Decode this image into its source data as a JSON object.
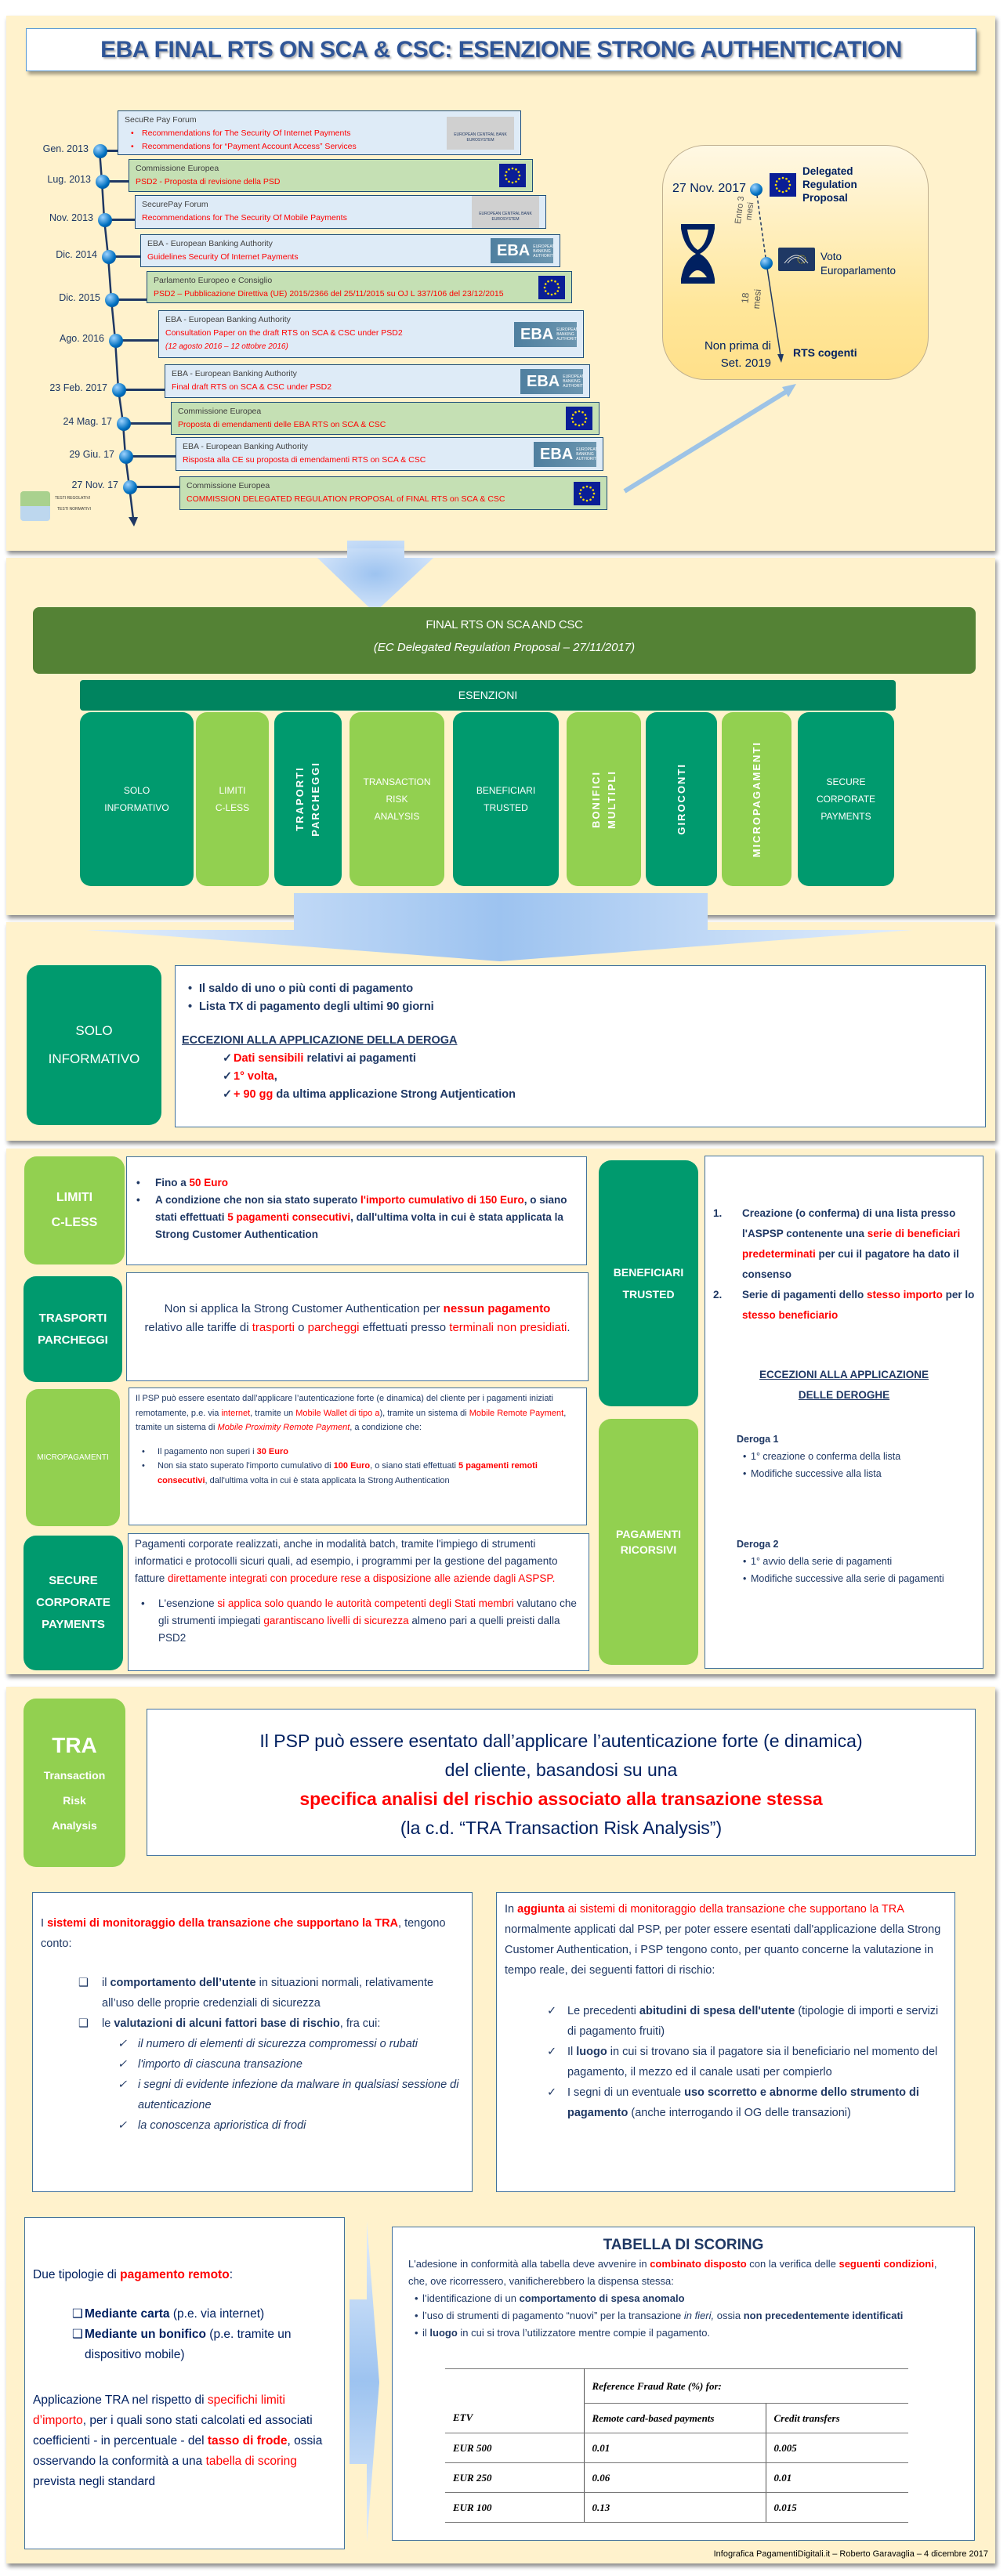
{
  "title": "EBA FINAL RTS ON SCA & CSC: ESENZIONE STRONG AUTHENTICATION",
  "timeline": {
    "items": [
      {
        "date": "Gen. 2013",
        "source": "SecuRe Pay Forum",
        "lines": [
          "Recommendations for The Security Of Internet Payments",
          "Recommendations for “Payment Account Access” Services"
        ],
        "bulleted": true,
        "kind": "blue",
        "logo": "ecb"
      },
      {
        "date": "Lug. 2013",
        "source": "Commissione Europea",
        "lines": [
          "PSD2 - Proposta di revisione della PSD"
        ],
        "kind": "green",
        "logo": "eu"
      },
      {
        "date": "Nov. 2013",
        "source": "SecurePay Forum",
        "lines": [
          "Recommendations for The Security Of Mobile Payments"
        ],
        "kind": "blue",
        "logo": "ecb"
      },
      {
        "date": "Dic. 2014",
        "source": "EBA - European Banking Authority",
        "lines": [
          "Guidelines Security Of Internet Payments"
        ],
        "kind": "blue",
        "logo": "eba"
      },
      {
        "date": "Dic. 2015",
        "source": "Parlamento Europeo e Consiglio",
        "lines": [
          "PSD2 – Pubblicazione Direttiva (UE) 2015/2366 del 25/11/2015 su OJ L 337/106 del 23/12/2015"
        ],
        "kind": "green",
        "logo": "eu"
      },
      {
        "date": "Ago. 2016",
        "source": "EBA - European Banking Authority",
        "lines": [
          "Consultation Paper on the draft RTS on SCA & CSC under PSD2"
        ],
        "note": "(12 agosto 2016 – 12 ottobre 2016)",
        "kind": "blue",
        "logo": "eba"
      },
      {
        "date": "23 Feb. 2017",
        "source": "EBA - European Banking Authority",
        "lines": [
          "Final draft RTS on SCA & CSC under PSD2"
        ],
        "kind": "blue",
        "logo": "eba"
      },
      {
        "date": "24 Mag. 17",
        "source": "Commissione Europea",
        "lines": [
          "Proposta di emendamenti delle EBA RTS on SCA & CSC"
        ],
        "kind": "green",
        "logo": "eu"
      },
      {
        "date": "29 Giu. 17",
        "source": "EBA - European Banking Authority",
        "lines": [
          "Risposta alla CE su proposta di emendamenti RTS on SCA & CSC"
        ],
        "kind": "blue",
        "logo": "eba"
      },
      {
        "date": "27 Nov. 17",
        "source": "Commissione Europea",
        "lines": [
          "COMMISSION DELEGATED REGULATION PROPOSAL of FINAL RTS on SCA & CSC"
        ],
        "kind": "green",
        "logo": "eu"
      }
    ],
    "logos": {
      "ecb": [
        "EUROPEAN CENTRAL BANK",
        "EUROSYSTEM"
      ],
      "eba": [
        "EBA",
        "EUROPEAN BANKING AUTHORITY"
      ]
    },
    "legend": [
      {
        "label": "TESTI REGOLATIVI",
        "color": "#A9D18E"
      },
      {
        "label": "TESTI NORMATIVI",
        "color": "#BDD7EE"
      }
    ]
  },
  "outlook": {
    "date": "27 Nov. 2017",
    "proposal": [
      "Delegated",
      "Regulation",
      "Proposal"
    ],
    "within": [
      "Entro 3",
      "mesi"
    ],
    "vote": [
      "Voto",
      "Europarlamento"
    ],
    "months": [
      "18",
      "mesi"
    ],
    "not_before": [
      "Non prima di",
      "Set. 2019"
    ],
    "effective": "RTS cogenti"
  },
  "final_rts": {
    "title": "FINAL RTS ON SCA AND CSC",
    "subtitle": "(EC Delegated  Regulation Proposal – 27/11/2017)"
  },
  "exemptions": {
    "title": "ESENZIONI",
    "items": [
      {
        "lines": [
          "SOLO",
          "INFORMATIVO"
        ],
        "tone": "dark",
        "vertical": false
      },
      {
        "lines": [
          "LIMITI",
          "C-LESS"
        ],
        "tone": "light",
        "vertical": false
      },
      {
        "lines": [
          "TRAPORTI",
          "PARCHEGGI"
        ],
        "tone": "dark",
        "vertical": true
      },
      {
        "lines": [
          "TRANSACTION",
          "RISK",
          "ANALYSIS"
        ],
        "tone": "light",
        "vertical": false
      },
      {
        "lines": [
          "BENEFICIARI",
          "TRUSTED"
        ],
        "tone": "dark",
        "vertical": false
      },
      {
        "lines": [
          "BONIFICI",
          "MULTIPLI"
        ],
        "tone": "light",
        "vertical": true
      },
      {
        "lines": [
          "GIROCONTI"
        ],
        "tone": "dark",
        "vertical": true
      },
      {
        "lines": [
          "MICROPAGAMENTI"
        ],
        "tone": "light",
        "vertical": true
      },
      {
        "lines": [
          "SECURE",
          "CORPORATE",
          "PAYMENTS"
        ],
        "tone": "dark",
        "vertical": false
      }
    ]
  },
  "solo": {
    "label": [
      "SOLO",
      "INFORMATIVO"
    ],
    "bullets": [
      "Il saldo di uno o più conti di pagamento",
      "Lista TX di pagamento degli ultimi 90 giorni"
    ],
    "heading": "ECCEZIONI ALLA  APPLICAZIONE DELLA DEROGA",
    "checks": [
      [
        [
          "Dati sensibili",
          "r"
        ],
        [
          " relativi ai pagamenti",
          ""
        ]
      ],
      [
        [
          "1° volta",
          "r"
        ],
        [
          ",",
          ""
        ]
      ],
      [
        [
          "+ 90 gg",
          "r"
        ],
        [
          " da ultima applicazione Strong Autjentication",
          ""
        ]
      ]
    ]
  },
  "limiti": {
    "label": [
      "LIMITI",
      "C-LESS"
    ],
    "bullets": [
      [
        [
          "Fino a ",
          ""
        ],
        [
          "50 Euro",
          "r"
        ]
      ],
      [
        [
          "A condizione che non sia stato superato ",
          ""
        ],
        [
          "l'importo cumulativo di 150 Euro",
          "r"
        ],
        [
          ", o siano stati effettuati ",
          ""
        ],
        [
          "5 pagamenti consecutivi",
          "r"
        ],
        [
          ", dall'ultima volta in cui è stata applicata la Strong Customer Authentication",
          ""
        ]
      ]
    ]
  },
  "trasporti": {
    "label": [
      "TRASPORTI",
      "PARCHEGGI"
    ],
    "text": [
      [
        "Non si applica la Strong Customer Authentication per ",
        ""
      ],
      [
        "nessun pagamento",
        "rb"
      ],
      [
        " relativo alle tariffe di ",
        ""
      ],
      [
        "trasporti",
        "r"
      ],
      [
        " o ",
        ""
      ],
      [
        "parcheggi",
        "r"
      ],
      [
        " effettuati presso ",
        ""
      ],
      [
        "terminali non presidiati",
        "r"
      ],
      [
        ".",
        ""
      ]
    ]
  },
  "micro": {
    "label": "MICROPAGAMENTI",
    "intro": [
      [
        "Il PSP può  essere esentato dall’applicare l’autenticazione forte  (e dinamica) del cliente per i pagamenti iniziati remotamente,  p.e. via ",
        ""
      ],
      [
        "internet",
        "r"
      ],
      [
        ",  tramite  un ",
        ""
      ],
      [
        "Mobile Wallet di tipo a",
        "r"
      ],
      [
        "), tramite un sistema di ",
        ""
      ],
      [
        "Mobile Remote Payment",
        "r"
      ],
      [
        ", tramite un sistema di ",
        ""
      ],
      [
        "Mobile Proximity Remote Payment",
        "ri"
      ],
      [
        ", a condizione che:",
        ""
      ]
    ],
    "bullets": [
      [
        [
          "Il pagamento non superi i ",
          ""
        ],
        [
          "30 Euro",
          "rb"
        ]
      ],
      [
        [
          "Non sia stato superato l'importo cumulativo di ",
          ""
        ],
        [
          "100 Euro",
          "rb"
        ],
        [
          ", o siano stati effettuati ",
          ""
        ],
        [
          "5 pagamenti remoti consecutivi",
          "rb"
        ],
        [
          ", dall'ultima volta in cui è stata applicata la Strong Authentication",
          ""
        ]
      ]
    ]
  },
  "secure": {
    "label": [
      "SECURE",
      "CORPORATE",
      "PAYMENTS"
    ],
    "text": [
      [
        "Pagamenti corporate realizzati, anche in modalità batch, tramite l'impiego di strumenti informatici e protocolli sicuri quali, ad esempio, i programmi per la gestione del pagamento fatture ",
        ""
      ],
      [
        "direttamente integrati con procedure rese a disposizione alle aziende dagli ASPSP.",
        "r"
      ]
    ],
    "bullet": [
      [
        "L'esenzione ",
        ""
      ],
      [
        "si applica solo quando le autorità competenti degli Stati membri",
        "r"
      ],
      [
        " valutano che gli strumenti impiegati ",
        ""
      ],
      [
        "garantiscano livelli di sicurezza",
        "r"
      ],
      [
        " almeno pari a quelli preisti dalla PSD2",
        ""
      ]
    ]
  },
  "beneficiari": {
    "label": [
      "BENEFICIARI",
      "TRUSTED"
    ],
    "label2": [
      "PAGAMENTI",
      "RICORSIVI"
    ],
    "items": [
      [
        [
          "Creazione (o conferma) di una lista presso l'ASPSP contenente una ",
          ""
        ],
        [
          "serie di beneficiari predeterminati",
          "r"
        ],
        [
          " per cui il pagatore ha dato il consenso",
          ""
        ]
      ],
      [
        [
          "Serie di pagamenti dello ",
          ""
        ],
        [
          "stesso importo",
          "r"
        ],
        [
          " per lo ",
          ""
        ],
        [
          "stesso beneficiario",
          "r"
        ]
      ]
    ],
    "heading": [
      "ECCEZIONI ALLA  APPLICAZIONE",
      "DELLE DEROGHE"
    ],
    "deroghe": [
      {
        "title": "Deroga 1",
        "bullets": [
          "1° creazione o conferma della lista",
          "Modifiche successive alla lista"
        ]
      },
      {
        "title": "Deroga 2",
        "bullets": [
          "1° avvio della serie di pagamenti",
          "Modifiche successive alla serie di pagamenti"
        ]
      }
    ]
  },
  "tra": {
    "label": "TRA",
    "sub": [
      "Transaction",
      "Risk",
      "Analysis"
    ],
    "lines": [
      "Il PSP può  essere esentato dall’applicare l’autenticazione forte (e dinamica)",
      "del cliente, basandosi su una",
      "specifica analisi del rischio associato alla transazione stessa",
      "(la c.d. “TRA Transaction Risk Analysis”)"
    ]
  },
  "tra_left": {
    "intro": [
      [
        "I ",
        ""
      ],
      [
        "sistemi di monitoraggio  della transazione  che supportano  la TRA",
        "rb"
      ],
      [
        ", tengono conto:",
        ""
      ]
    ],
    "items": [
      [
        [
          "il ",
          ""
        ],
        [
          "comportamento  dell’utente",
          "b"
        ],
        [
          " in situazioni normali, relativamente all’uso delle proprie credenziali di sicurezza",
          ""
        ]
      ],
      [
        [
          "le ",
          ""
        ],
        [
          "valutazioni  di alcuni  fattori base di rischio",
          "b"
        ],
        [
          ", fra cui:",
          ""
        ]
      ]
    ],
    "checks": [
      " il numero di elementi di sicurezza compromessi o rubati",
      "l'importo di ciascuna transazione",
      "i segni di evidente infezione da malware in qualsiasi sessione di autenticazione",
      "la conoscenza aprioristica di frodi"
    ]
  },
  "tra_right": {
    "intro": [
      [
        "In ",
        ""
      ],
      [
        "aggiunta",
        "rb"
      ],
      [
        " ai sistemi di monitoraggio della transazione che supportano la TRA",
        "r"
      ],
      [
        " normalmente applicati dal PSP, per poter essere esentati dall'applicazione della Strong Customer Authentication, i PSP tengono conto, per quanto concerne la valutazione in tempo reale, dei seguenti fattori di rischio:",
        ""
      ]
    ],
    "checks": [
      [
        [
          "Le precedenti ",
          ""
        ],
        [
          "abitudini di spesa dell'utente",
          "b"
        ],
        [
          " (tipologie di importi e servizi di pagamento fruiti)",
          ""
        ]
      ],
      [
        [
          "Il ",
          ""
        ],
        [
          "luogo",
          "b"
        ],
        [
          " in cui si trovano sia il pagatore sia il beneficiario nel momento del pagamento, il mezzo ed il canale usati per compierlo",
          ""
        ]
      ],
      [
        [
          "I segni di un eventuale ",
          ""
        ],
        [
          "uso scorretto e abnorme dello strumento di pagamento",
          "b"
        ],
        [
          " (anche interrogando il OG delle transazioni)",
          ""
        ]
      ]
    ]
  },
  "remote": {
    "intro": [
      [
        "Due tipologie di ",
        ""
      ],
      [
        "pagamento remoto",
        "rb"
      ],
      [
        ":",
        ""
      ]
    ],
    "items": [
      [
        [
          "Mediante carta",
          "b"
        ],
        [
          " (p.e. via internet)",
          ""
        ]
      ],
      [
        [
          "Mediante un bonifico",
          "b"
        ],
        [
          " (p.e. tramite un dispositivo mobile)",
          ""
        ]
      ]
    ],
    "text": [
      [
        "Applicazione TRA nel rispetto di ",
        ""
      ],
      [
        "specifichi limiti d’importo",
        "r"
      ],
      [
        ", per i quali sono stati calcolati ed associati coefficienti - in percentuale - del ",
        ""
      ],
      [
        "tasso di frode",
        "rb"
      ],
      [
        ", ossia osservando la conformità a una ",
        ""
      ],
      [
        "tabella di scoring",
        "r"
      ],
      [
        " prevista negli standard",
        ""
      ]
    ]
  },
  "scoring": {
    "title": "TABELLA DI SCORING",
    "intro": [
      [
        "L'adesione in conformità alla tabella deve avvenire in ",
        ""
      ],
      [
        "combinato disposto",
        "rb"
      ],
      [
        " con la verifica delle ",
        ""
      ],
      [
        "seguenti condizioni",
        "rb"
      ],
      [
        ", che, ove ricorressero, vanificherebbero la dispensa stessa:",
        ""
      ]
    ],
    "bullets": [
      [
        [
          "l’identificazione di un ",
          ""
        ],
        [
          "comportamento di spesa anomalo",
          "b"
        ]
      ],
      [
        [
          "l’uso di strumenti di pagamento “nuovi” per la transazione ",
          ""
        ],
        [
          "in fieri,",
          "i"
        ],
        [
          " ossia ",
          ""
        ],
        [
          "non precedentemente identificati",
          "b"
        ]
      ],
      [
        [
          "il ",
          ""
        ],
        [
          "luogo",
          "b"
        ],
        [
          " in cui si trova l’utilizzatore mentre compie il pagamento.",
          ""
        ]
      ]
    ],
    "table": {
      "group_header": "Reference Fraud Rate (%) for:",
      "headers": [
        "ETV",
        "Remote card-based payments",
        "Credit transfers"
      ],
      "rows": [
        [
          "EUR 500",
          "0.01",
          "0.005"
        ],
        [
          "EUR 250",
          "0.06",
          "0.01"
        ],
        [
          "EUR 100",
          "0.13",
          "0.015"
        ]
      ]
    }
  },
  "footer": "Infografica  PagamentiDigitali.it  – Roberto Garavaglia  – 4 dicembre 2017",
  "colors": {
    "dark_green": "#009A6E",
    "light_green": "#92D050",
    "banner_green": "#548235",
    "esenzioni": "#00845F",
    "cream": "#FFF2CC",
    "navy": "#1F3864",
    "accent_red": "#FF0000"
  }
}
